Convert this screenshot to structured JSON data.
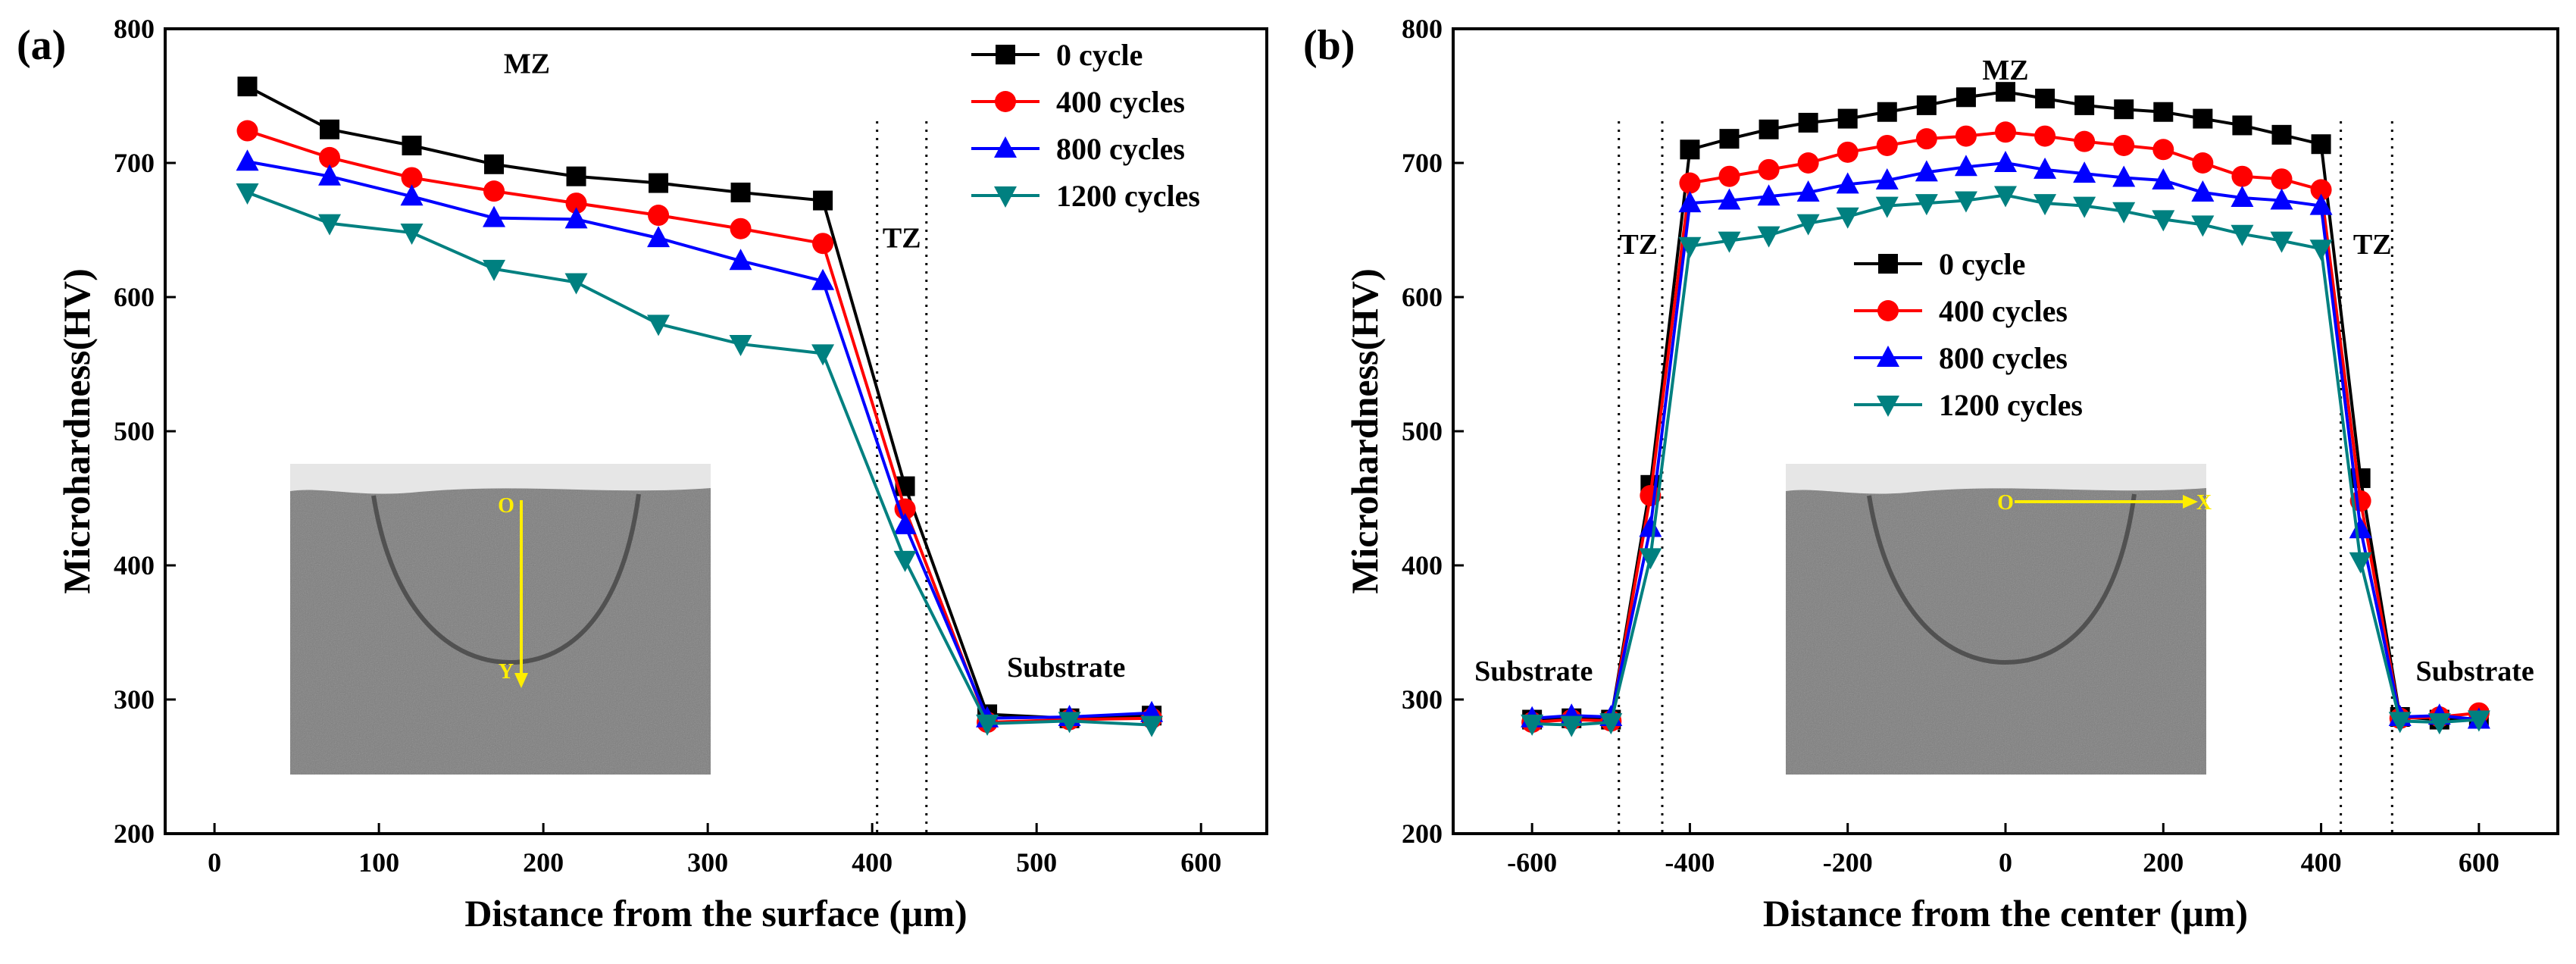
{
  "chart_data": [
    {
      "type": "line",
      "panel_label": "(a)",
      "xlabel": "Distance from the surface (μm)",
      "ylabel": "Microhardness(HV)",
      "xlim": [
        -30,
        640
      ],
      "ylim": [
        200,
        800
      ],
      "xticks": [
        0,
        100,
        200,
        300,
        400,
        500,
        600
      ],
      "yticks": [
        200,
        300,
        400,
        500,
        600,
        700,
        800
      ],
      "x": [
        20,
        70,
        120,
        170,
        220,
        270,
        320,
        370,
        420,
        470,
        520,
        570
      ],
      "series": [
        {
          "name": "0 cycle",
          "color": "#000000",
          "marker": "square",
          "values": [
            757,
            725,
            713,
            699,
            690,
            685,
            678,
            672,
            459,
            289,
            286,
            288
          ]
        },
        {
          "name": "400 cycles",
          "color": "#ff0000",
          "marker": "circle",
          "values": [
            724,
            704,
            689,
            679,
            670,
            661,
            651,
            640,
            442,
            283,
            285,
            286
          ]
        },
        {
          "name": "800 cycles",
          "color": "#0000ff",
          "marker": "triangle-up",
          "values": [
            701,
            690,
            675,
            659,
            658,
            644,
            627,
            612,
            430,
            286,
            287,
            290
          ]
        },
        {
          "name": "1200 cycles",
          "color": "#008080",
          "marker": "triangle-down",
          "values": [
            678,
            655,
            648,
            621,
            611,
            580,
            565,
            558,
            404,
            282,
            284,
            281
          ]
        }
      ],
      "divider_x": [
        403,
        433
      ],
      "legend_position": "top-right",
      "annotations": [
        {
          "text": "MZ",
          "x": 190,
          "y": 775
        },
        {
          "text": "TZ",
          "x": 418,
          "y": 645
        },
        {
          "text": "Substrate",
          "x": 518,
          "y": 325
        }
      ],
      "inset": {
        "origin_label": "O",
        "axis_label": "Y",
        "direction": "down"
      }
    },
    {
      "type": "line",
      "panel_label": "(b)",
      "xlabel": "Distance from the  center (μm)",
      "ylabel": "Microhardness(HV)",
      "xlim": [
        -700,
        700
      ],
      "ylim": [
        200,
        800
      ],
      "xticks": [
        -600,
        -400,
        -200,
        0,
        200,
        400,
        600
      ],
      "yticks": [
        200,
        300,
        400,
        500,
        600,
        700,
        800
      ],
      "x": [
        -600,
        -550,
        -500,
        -450,
        -400,
        -350,
        -300,
        -250,
        -200,
        -150,
        -100,
        -50,
        0,
        50,
        100,
        150,
        200,
        250,
        300,
        350,
        400,
        450,
        500,
        550,
        600
      ],
      "series": [
        {
          "name": "0 cycle",
          "color": "#000000",
          "marker": "square",
          "values": [
            285,
            286,
            285,
            460,
            710,
            718,
            725,
            730,
            733,
            738,
            743,
            749,
            753,
            748,
            743,
            740,
            738,
            733,
            728,
            721,
            714,
            465,
            287,
            285,
            286
          ]
        },
        {
          "name": "400 cycles",
          "color": "#ff0000",
          "marker": "circle",
          "values": [
            283,
            285,
            284,
            452,
            685,
            690,
            695,
            700,
            708,
            713,
            718,
            720,
            723,
            720,
            716,
            713,
            710,
            700,
            690,
            688,
            680,
            448,
            286,
            287,
            290
          ]
        },
        {
          "name": "800 cycles",
          "color": "#0000ff",
          "marker": "triangle-up",
          "values": [
            286,
            288,
            287,
            428,
            670,
            672,
            675,
            678,
            684,
            687,
            693,
            697,
            700,
            695,
            692,
            689,
            687,
            678,
            674,
            672,
            668,
            427,
            287,
            288,
            285
          ]
        },
        {
          "name": "1200 cycles",
          "color": "#008080",
          "marker": "triangle-down",
          "values": [
            282,
            281,
            283,
            406,
            638,
            642,
            646,
            655,
            660,
            668,
            670,
            672,
            676,
            670,
            668,
            664,
            658,
            654,
            647,
            642,
            636,
            403,
            284,
            283,
            285
          ]
        }
      ],
      "divider_x": [
        -490,
        -435,
        425,
        490
      ],
      "legend_position": "upper-center",
      "annotations": [
        {
          "text": "MZ",
          "x": 0,
          "y": 770
        },
        {
          "text": "TZ",
          "x": -465,
          "y": 640
        },
        {
          "text": "TZ",
          "x": 465,
          "y": 640
        },
        {
          "text": "Substrate",
          "x": -598,
          "y": 322
        },
        {
          "text": "Substrate",
          "x": 595,
          "y": 322
        }
      ],
      "inset": {
        "origin_label": "O",
        "axis_label": "X",
        "direction": "right"
      }
    }
  ]
}
